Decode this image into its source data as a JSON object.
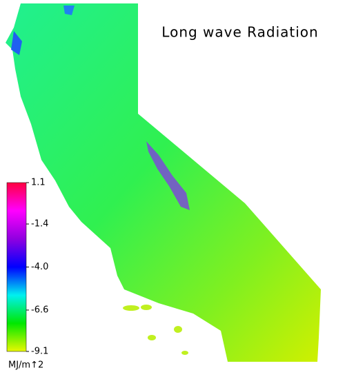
{
  "title": "Long wave Radiation",
  "colorbar": {
    "range": [
      -9.1,
      1.1
    ],
    "ticks": [
      1.1,
      -1.4,
      {
        "value": -4,
        "label": "-4.0"
      },
      -6.6,
      -9.1
    ],
    "unit": "MJ/m↑2",
    "colors": [
      "#e8f800",
      "#00e800",
      "#00f0f0",
      "#0000ff",
      "#9000e0",
      "#ff00ff",
      "#ff0040"
    ]
  }
}
